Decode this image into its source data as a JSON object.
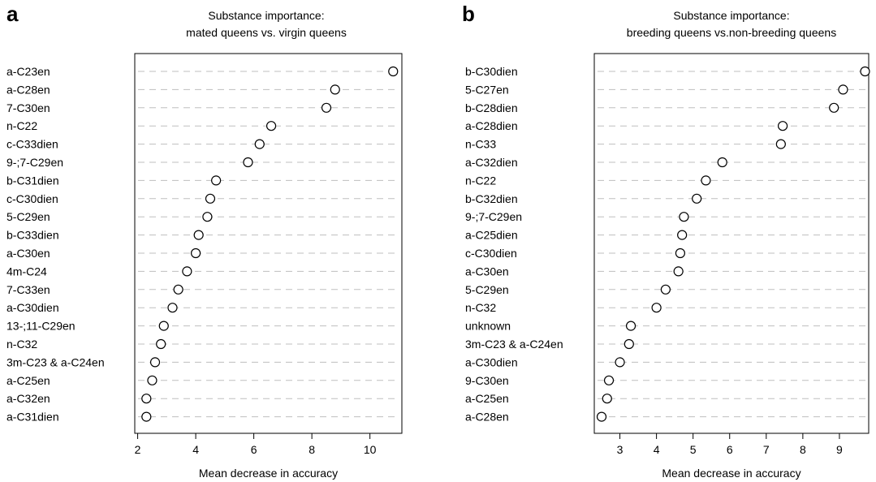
{
  "chart_data": [
    {
      "type": "scatter",
      "panel": "a",
      "title": [
        "Substance importance:",
        "mated queens vs. virgin queens"
      ],
      "xlabel": "Mean decrease in accuracy",
      "ylabel": "",
      "xlim": [
        1.9,
        11.1
      ],
      "xticks": [
        2,
        4,
        6,
        8,
        10
      ],
      "grid": "horizontal dashed",
      "categories": [
        "a-C23en",
        "a-C28en",
        "7-C30en",
        "n-C22",
        "c-C33dien",
        "9-;7-C29en",
        "b-C31dien",
        "c-C30dien",
        "5-C29en",
        "b-C33dien",
        "a-C30en",
        "4m-C24",
        "7-C33en",
        "a-C30dien",
        "13-;11-C29en",
        "n-C32",
        "3m-C23 & a-C24en",
        "a-C25en",
        "a-C32en",
        "a-C31dien"
      ],
      "values": [
        10.8,
        8.8,
        8.5,
        6.6,
        6.2,
        5.8,
        4.7,
        4.5,
        4.4,
        4.1,
        4.0,
        3.7,
        3.4,
        3.2,
        2.9,
        2.8,
        2.6,
        2.5,
        2.3,
        2.3
      ]
    },
    {
      "type": "scatter",
      "panel": "b",
      "title": [
        "Substance importance:",
        "breeding queens vs.non-breeding queens"
      ],
      "xlabel": "Mean decrease in accuracy",
      "ylabel": "",
      "xlim": [
        2.3,
        9.8
      ],
      "xticks": [
        3,
        4,
        5,
        6,
        7,
        8,
        9
      ],
      "grid": "horizontal dashed",
      "categories": [
        "b-C30dien",
        "5-C27en",
        "b-C28dien",
        "a-C28dien",
        "n-C33",
        "a-C32dien",
        "n-C22",
        "b-C32dien",
        "9-;7-C29en",
        "a-C25dien",
        "c-C30dien",
        "a-C30en",
        "5-C29en",
        "n-C32",
        "unknown",
        "3m-C23 & a-C24en",
        "a-C30dien",
        "9-C30en",
        "a-C25en",
        "a-C28en"
      ],
      "values": [
        9.7,
        9.1,
        8.85,
        7.45,
        7.4,
        5.8,
        5.35,
        5.1,
        4.75,
        4.7,
        4.65,
        4.6,
        4.25,
        4.0,
        3.3,
        3.25,
        3.0,
        2.7,
        2.65,
        2.5
      ]
    }
  ]
}
